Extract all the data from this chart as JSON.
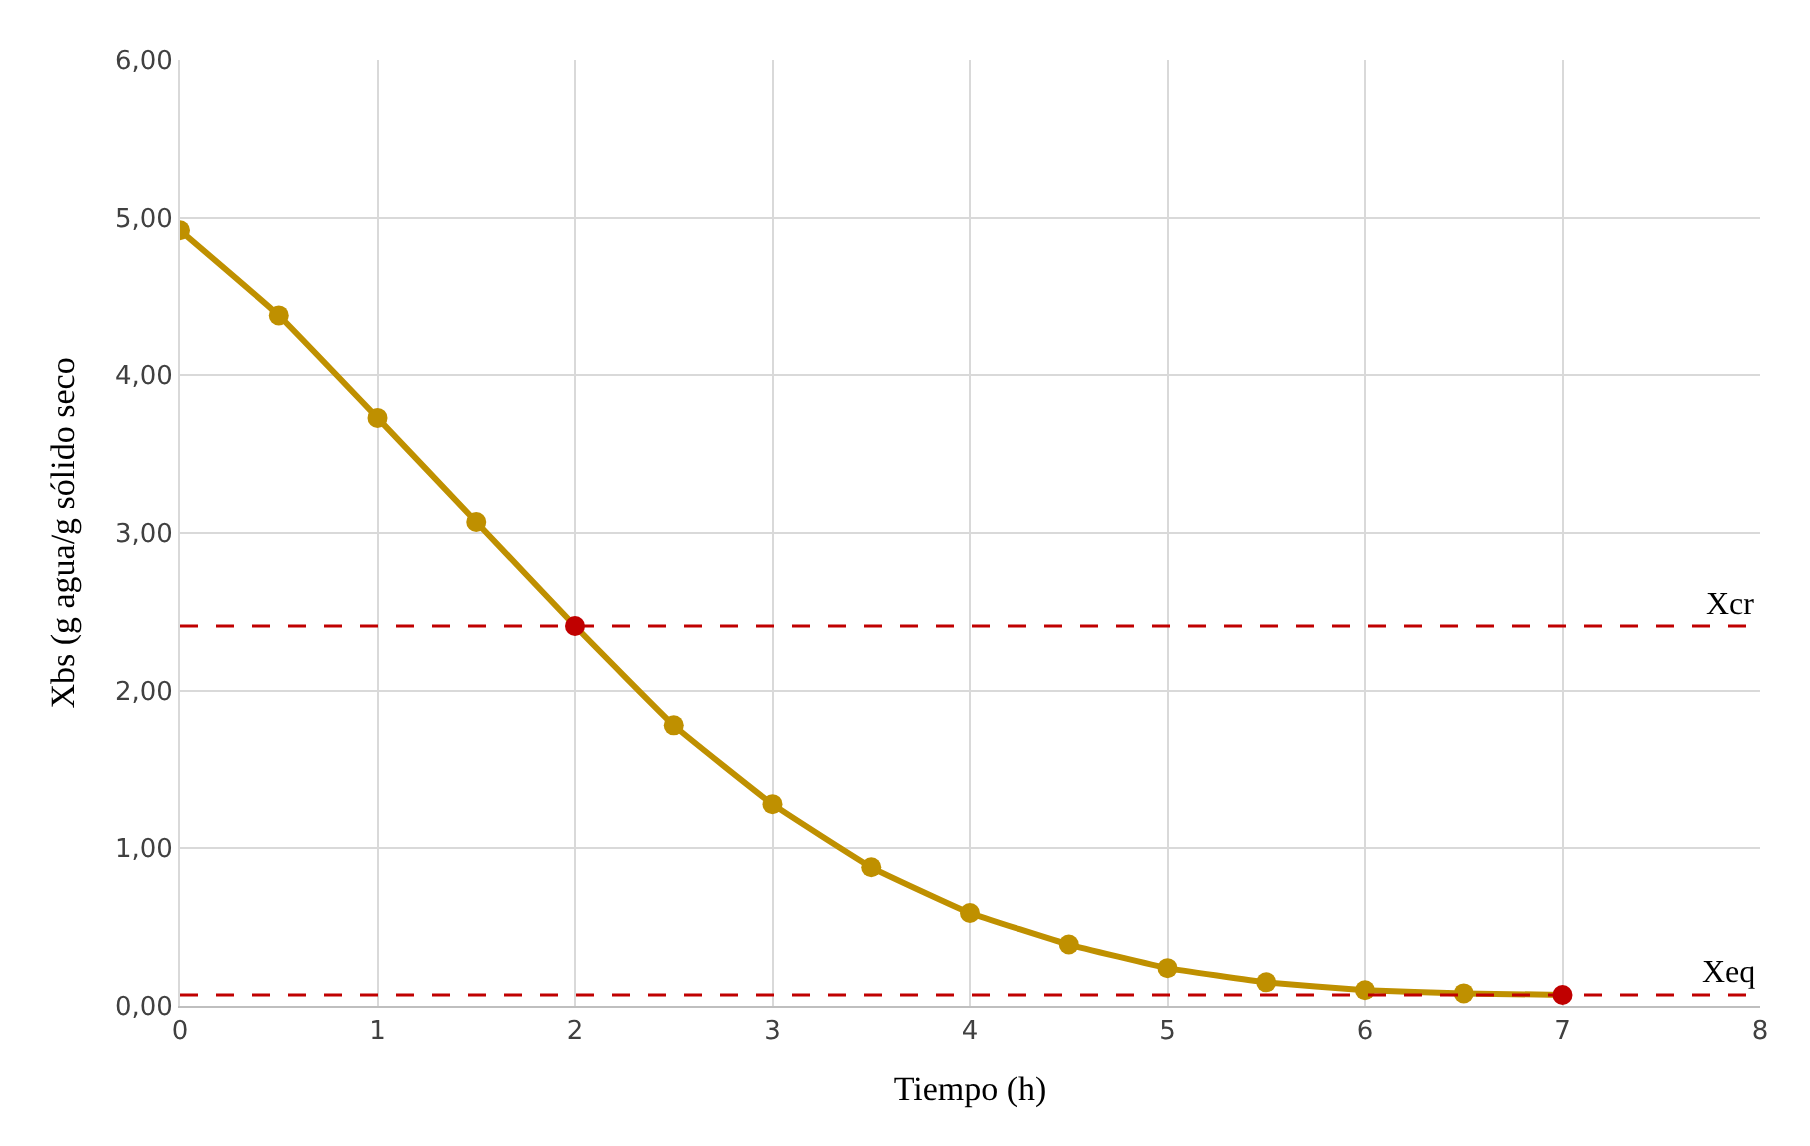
{
  "chart_data": {
    "type": "line",
    "xlabel": "Tiempo (h)",
    "ylabel": "Xbs (g agua/g sólido seco",
    "x": [
      0,
      0.5,
      1,
      1.5,
      2,
      2.5,
      3,
      3.5,
      4,
      4.5,
      5,
      5.5,
      6,
      6.5,
      7
    ],
    "series": [
      {
        "color": "#bf9000",
        "colors": [
          "#bf9000",
          "#bf9000",
          "#bf9000",
          "#bf9000",
          "#c00000",
          "#bf9000",
          "#bf9000",
          "#bf9000",
          "#bf9000",
          "#bf9000",
          "#bf9000",
          "#bf9000",
          "#bf9000",
          "#bf9000",
          "#c00000"
        ],
        "values": [
          4.92,
          4.38,
          3.73,
          3.07,
          2.41,
          1.78,
          1.28,
          0.88,
          0.59,
          0.39,
          0.24,
          0.15,
          0.1,
          0.08,
          0.07
        ]
      }
    ],
    "xlim": [
      0,
      8
    ],
    "xticks": [
      0,
      1,
      2,
      3,
      4,
      5,
      6,
      7,
      8
    ],
    "ylim": [
      0,
      6
    ],
    "yticks": [
      {
        "value": 0,
        "label": "0,00"
      },
      {
        "value": 1,
        "label": "1,00"
      },
      {
        "value": 2,
        "label": "2,00"
      },
      {
        "value": 3,
        "label": "3,00"
      },
      {
        "value": 4,
        "label": "4,00"
      },
      {
        "value": 5,
        "label": "5,00"
      },
      {
        "value": 6,
        "label": "6,00"
      }
    ],
    "ref_lines": [
      {
        "axis": "y",
        "value": 2.41,
        "label": "Xcr",
        "color": "#c00000",
        "line_style": "dashed"
      },
      {
        "axis": "y",
        "value": 0.07,
        "label": "Xeq",
        "color": "#c00000",
        "line_style": "dashed"
      }
    ],
    "grid": true,
    "marker": "circle",
    "line_style": "solid",
    "legend": false
  }
}
